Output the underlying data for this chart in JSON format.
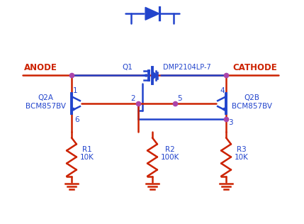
{
  "background_color": "#ffffff",
  "red": "#cc2200",
  "blue": "#2244cc",
  "purple": "#aa44aa",
  "lw": 1.8,
  "anode_label": "ANODE",
  "cathode_label": "CATHODE",
  "q1_label": "Q1",
  "q1_part": "DMP2104LP-7",
  "q2a_label": "Q2A\nBCM857BV",
  "q2b_label": "Q2B\nBCM857BV",
  "r1_label": "R1\n10K",
  "r2_label": "R2\n100K",
  "r3_label": "R3\n10K"
}
